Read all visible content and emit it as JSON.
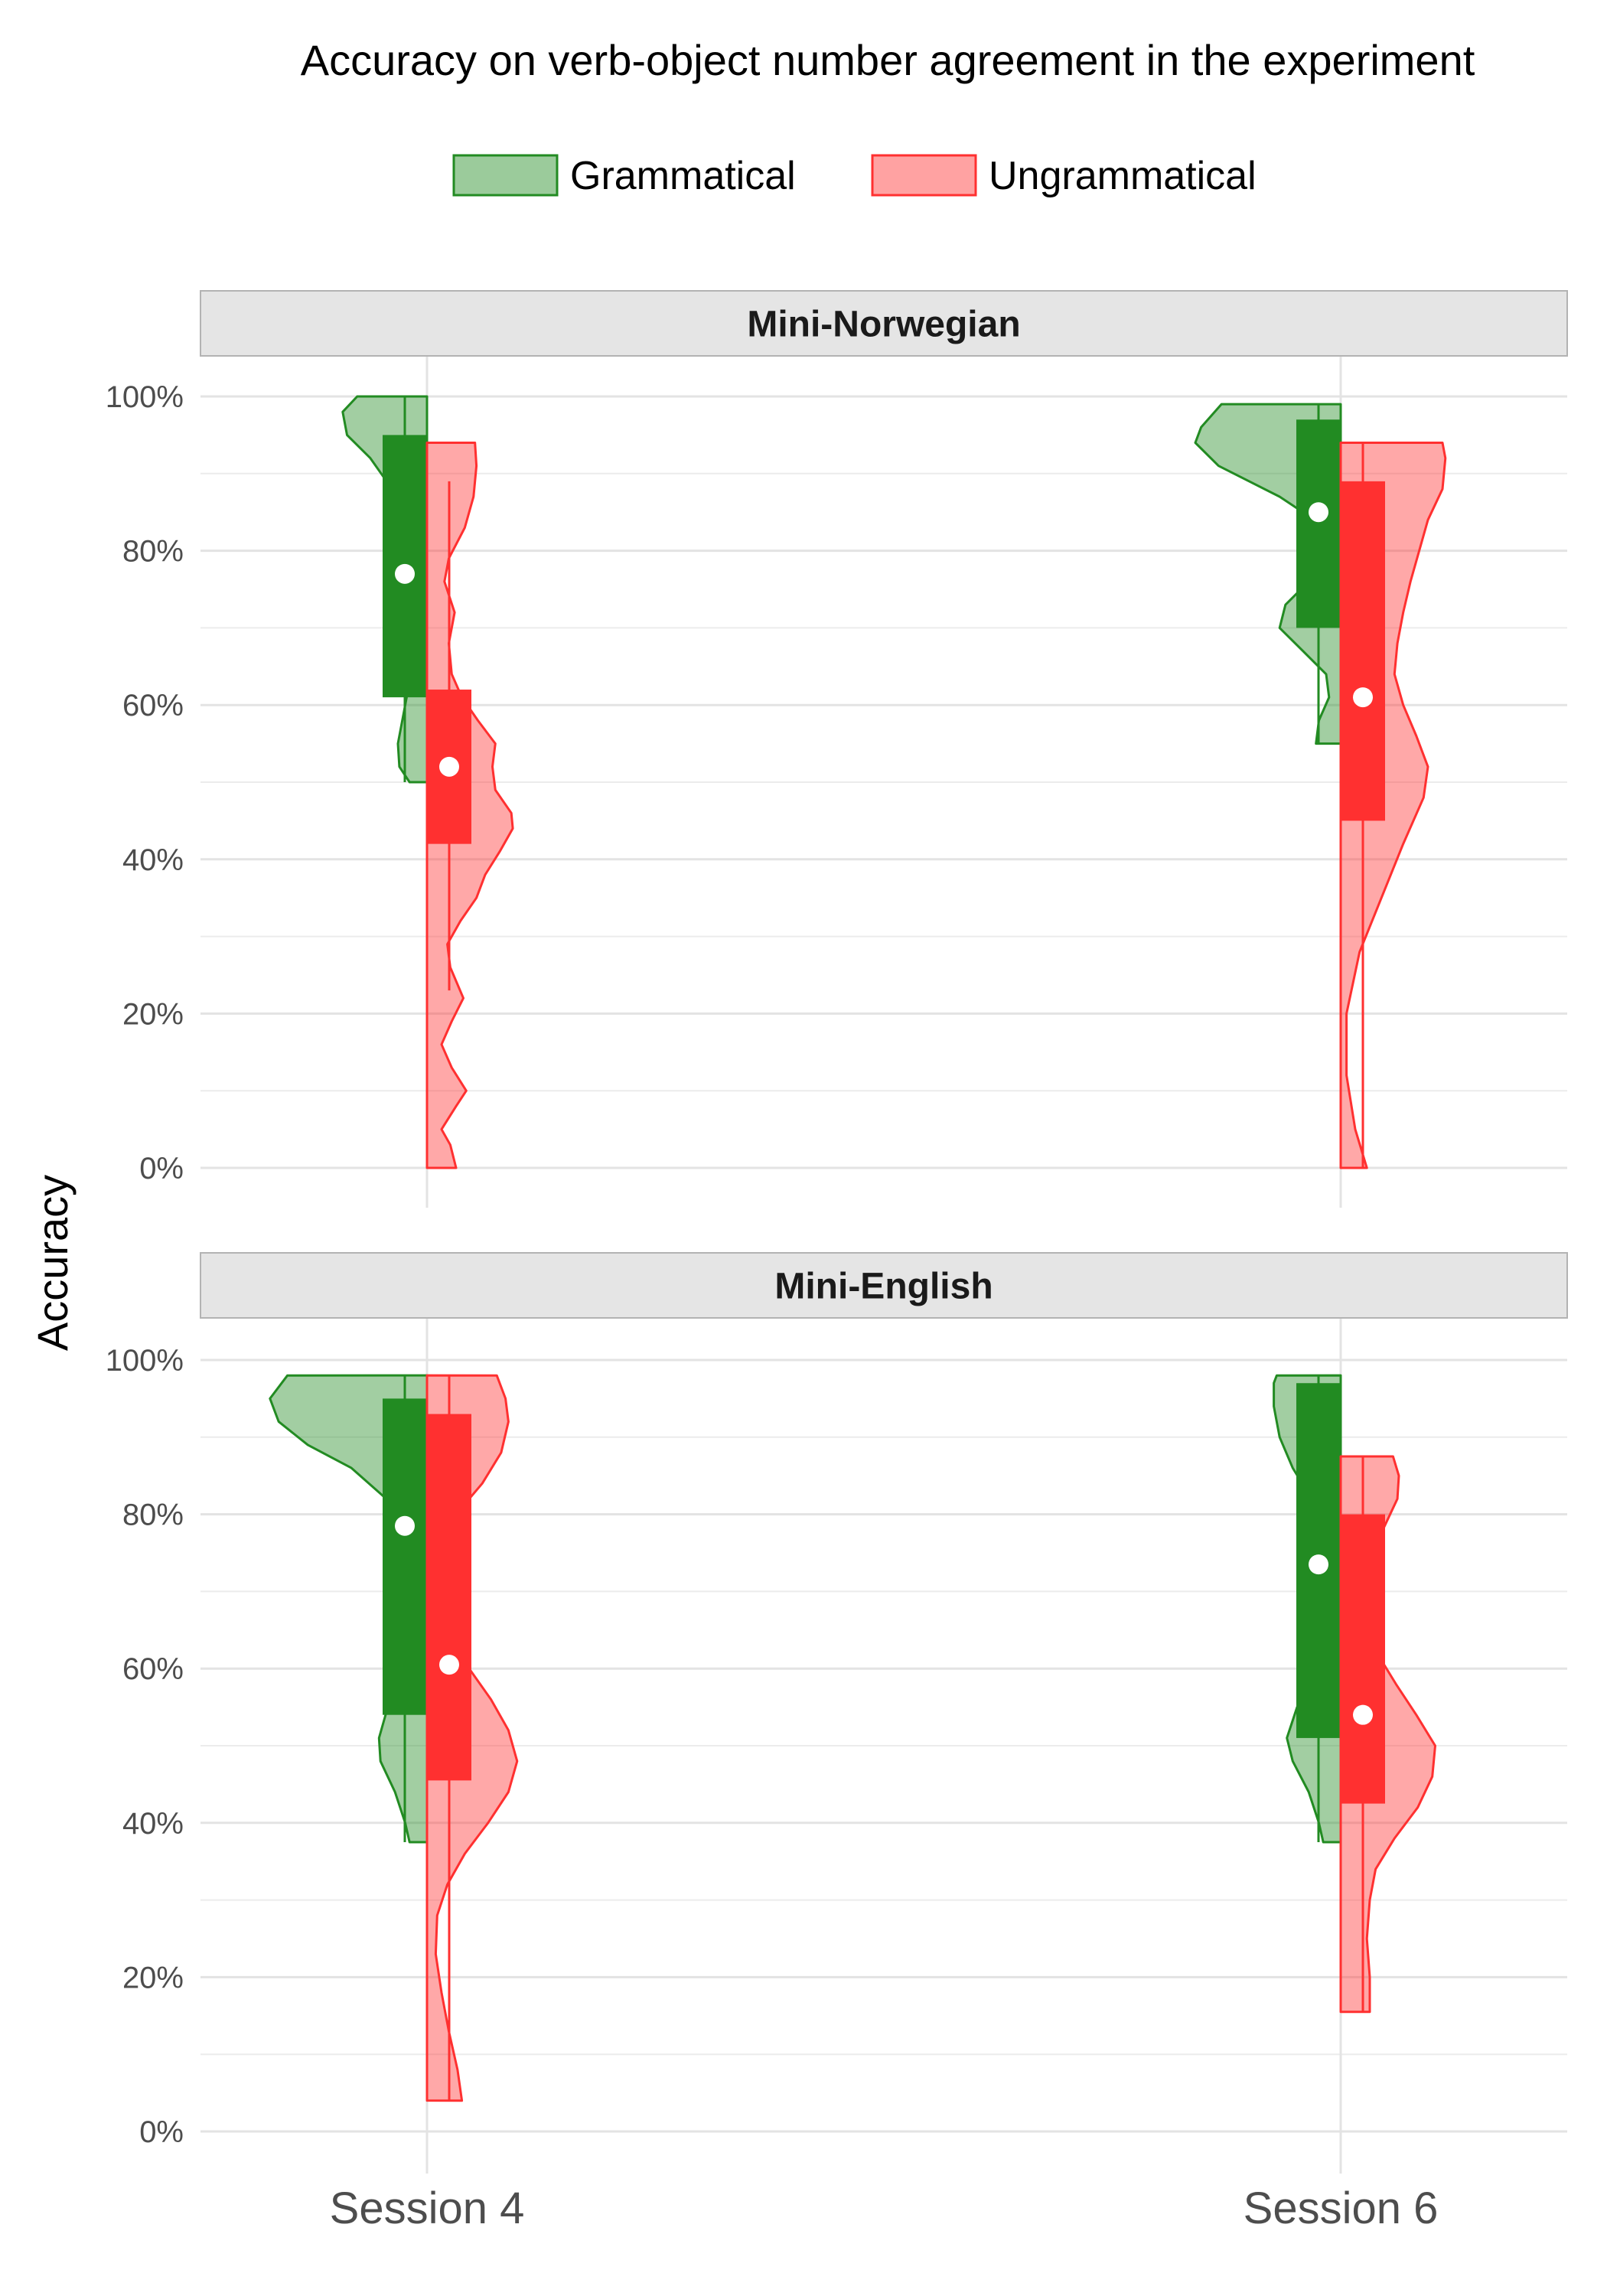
{
  "chart_data": {
    "type": "split-violin",
    "title": "Accuracy on verb-object number agreement in the experiment",
    "ylabel": "Accuracy",
    "xlabel": "",
    "ylim": [
      0,
      1
    ],
    "y_ticks": [
      "0%",
      "20%",
      "40%",
      "60%",
      "80%",
      "100%"
    ],
    "y_tick_values": [
      0,
      0.2,
      0.4,
      0.6,
      0.8,
      1.0
    ],
    "categories": [
      "Session 4",
      "Session 6"
    ],
    "legend": {
      "position": "top",
      "entries": [
        {
          "name": "Grammatical",
          "color": "#228B22"
        },
        {
          "name": "Ungrammatical",
          "color": "#FF3030"
        }
      ]
    },
    "grid": true,
    "panels": [
      {
        "name": "Mini-Norwegian",
        "groups": [
          {
            "session": "Session 4",
            "series": "Grammatical",
            "range": [
              0.5,
              1.0
            ],
            "box": {
              "q1": 0.61,
              "q3": 0.95,
              "mean": 0.77
            },
            "density": [
              [
                0.5,
                0.12
              ],
              [
                0.52,
                0.19
              ],
              [
                0.55,
                0.2
              ],
              [
                0.58,
                0.17
              ],
              [
                0.61,
                0.14
              ],
              [
                0.64,
                0.12
              ],
              [
                0.67,
                0.18
              ],
              [
                0.7,
                0.24
              ],
              [
                0.73,
                0.18
              ],
              [
                0.76,
                0.12
              ],
              [
                0.8,
                0.08
              ],
              [
                0.84,
                0.14
              ],
              [
                0.88,
                0.24
              ],
              [
                0.92,
                0.39
              ],
              [
                0.95,
                0.55
              ],
              [
                0.98,
                0.58
              ],
              [
                1.0,
                0.48
              ]
            ]
          },
          {
            "session": "Session 4",
            "series": "Ungrammatical",
            "range": [
              0.0,
              0.94
            ],
            "box": {
              "q1": 0.42,
              "q3": 0.62,
              "mean": 0.52
            },
            "whisker": [
              0.23,
              0.89
            ],
            "density": [
              [
                0.0,
                0.2
              ],
              [
                0.03,
                0.16
              ],
              [
                0.05,
                0.1
              ],
              [
                0.08,
                0.2
              ],
              [
                0.1,
                0.27
              ],
              [
                0.13,
                0.17
              ],
              [
                0.16,
                0.1
              ],
              [
                0.19,
                0.17
              ],
              [
                0.22,
                0.25
              ],
              [
                0.26,
                0.16
              ],
              [
                0.29,
                0.14
              ],
              [
                0.32,
                0.23
              ],
              [
                0.35,
                0.34
              ],
              [
                0.38,
                0.4
              ],
              [
                0.41,
                0.5
              ],
              [
                0.44,
                0.59
              ],
              [
                0.46,
                0.58
              ],
              [
                0.49,
                0.47
              ],
              [
                0.52,
                0.45
              ],
              [
                0.55,
                0.47
              ],
              [
                0.58,
                0.35
              ],
              [
                0.61,
                0.24
              ],
              [
                0.64,
                0.17
              ],
              [
                0.68,
                0.15
              ],
              [
                0.72,
                0.19
              ],
              [
                0.76,
                0.12
              ],
              [
                0.79,
                0.15
              ],
              [
                0.83,
                0.26
              ],
              [
                0.87,
                0.32
              ],
              [
                0.91,
                0.34
              ],
              [
                0.94,
                0.33
              ]
            ]
          },
          {
            "session": "Session 6",
            "series": "Grammatical",
            "range": [
              0.55,
              0.99
            ],
            "box": {
              "q1": 0.7,
              "q3": 0.97,
              "mean": 0.85
            },
            "density": [
              [
                0.55,
                0.17
              ],
              [
                0.58,
                0.15
              ],
              [
                0.61,
                0.08
              ],
              [
                0.64,
                0.1
              ],
              [
                0.67,
                0.26
              ],
              [
                0.7,
                0.42
              ],
              [
                0.73,
                0.38
              ],
              [
                0.76,
                0.22
              ],
              [
                0.79,
                0.08
              ],
              [
                0.83,
                0.1
              ],
              [
                0.87,
                0.42
              ],
              [
                0.91,
                0.84
              ],
              [
                0.94,
                1.0
              ],
              [
                0.96,
                0.96
              ],
              [
                0.99,
                0.82
              ]
            ]
          },
          {
            "session": "Session 6",
            "series": "Ungrammatical",
            "range": [
              0.0,
              0.94
            ],
            "box": {
              "q1": 0.45,
              "q3": 0.89,
              "mean": 0.61
            },
            "density": [
              [
                0.0,
                0.18
              ],
              [
                0.05,
                0.1
              ],
              [
                0.12,
                0.04
              ],
              [
                0.2,
                0.04
              ],
              [
                0.28,
                0.13
              ],
              [
                0.35,
                0.28
              ],
              [
                0.42,
                0.43
              ],
              [
                0.48,
                0.57
              ],
              [
                0.52,
                0.6
              ],
              [
                0.56,
                0.52
              ],
              [
                0.6,
                0.43
              ],
              [
                0.64,
                0.37
              ],
              [
                0.68,
                0.39
              ],
              [
                0.72,
                0.43
              ],
              [
                0.76,
                0.48
              ],
              [
                0.8,
                0.54
              ],
              [
                0.84,
                0.6
              ],
              [
                0.88,
                0.7
              ],
              [
                0.92,
                0.72
              ],
              [
                0.94,
                0.7
              ]
            ]
          }
        ]
      },
      {
        "name": "Mini-English",
        "groups": [
          {
            "session": "Session 4",
            "series": "Grammatical",
            "range": [
              0.375,
              0.98
            ],
            "box": {
              "q1": 0.54,
              "q3": 0.95,
              "mean": 0.785
            },
            "density": [
              [
                0.375,
                0.12
              ],
              [
                0.4,
                0.15
              ],
              [
                0.44,
                0.22
              ],
              [
                0.48,
                0.32
              ],
              [
                0.51,
                0.33
              ],
              [
                0.55,
                0.27
              ],
              [
                0.59,
                0.16
              ],
              [
                0.63,
                0.07
              ],
              [
                0.67,
                0.02
              ],
              [
                0.7,
                0.04
              ],
              [
                0.74,
                0.05
              ],
              [
                0.78,
                0.12
              ],
              [
                0.82,
                0.28
              ],
              [
                0.86,
                0.52
              ],
              [
                0.89,
                0.82
              ],
              [
                0.92,
                1.02
              ],
              [
                0.95,
                1.08
              ],
              [
                0.98,
                0.96
              ]
            ]
          },
          {
            "session": "Session 4",
            "series": "Ungrammatical",
            "range": [
              0.04,
              0.98
            ],
            "box": {
              "q1": 0.455,
              "q3": 0.93,
              "mean": 0.605
            },
            "density": [
              [
                0.04,
                0.24
              ],
              [
                0.08,
                0.21
              ],
              [
                0.13,
                0.15
              ],
              [
                0.18,
                0.1
              ],
              [
                0.23,
                0.06
              ],
              [
                0.28,
                0.07
              ],
              [
                0.32,
                0.14
              ],
              [
                0.36,
                0.26
              ],
              [
                0.4,
                0.42
              ],
              [
                0.44,
                0.56
              ],
              [
                0.48,
                0.62
              ],
              [
                0.52,
                0.56
              ],
              [
                0.56,
                0.44
              ],
              [
                0.6,
                0.29
              ],
              [
                0.64,
                0.17
              ],
              [
                0.68,
                0.09
              ],
              [
                0.72,
                0.06
              ],
              [
                0.76,
                0.09
              ],
              [
                0.8,
                0.2
              ],
              [
                0.84,
                0.38
              ],
              [
                0.88,
                0.51
              ],
              [
                0.92,
                0.56
              ],
              [
                0.95,
                0.54
              ],
              [
                0.98,
                0.48
              ]
            ]
          },
          {
            "session": "Session 6",
            "series": "Grammatical",
            "range": [
              0.375,
              0.98
            ],
            "box": {
              "q1": 0.51,
              "q3": 0.97,
              "mean": 0.735
            },
            "density": [
              [
                0.375,
                0.12
              ],
              [
                0.4,
                0.15
              ],
              [
                0.44,
                0.22
              ],
              [
                0.48,
                0.33
              ],
              [
                0.51,
                0.37
              ],
              [
                0.55,
                0.3
              ],
              [
                0.59,
                0.18
              ],
              [
                0.63,
                0.07
              ],
              [
                0.67,
                0.02
              ],
              [
                0.7,
                0.03
              ],
              [
                0.74,
                0.04
              ],
              [
                0.78,
                0.09
              ],
              [
                0.82,
                0.2
              ],
              [
                0.86,
                0.33
              ],
              [
                0.9,
                0.42
              ],
              [
                0.94,
                0.46
              ],
              [
                0.97,
                0.46
              ],
              [
                0.98,
                0.44
              ]
            ]
          },
          {
            "session": "Session 6",
            "series": "Ungrammatical",
            "range": [
              0.155,
              0.875
            ],
            "box": {
              "q1": 0.425,
              "q3": 0.8,
              "mean": 0.54
            },
            "density": [
              [
                0.155,
                0.2
              ],
              [
                0.2,
                0.2
              ],
              [
                0.25,
                0.18
              ],
              [
                0.3,
                0.2
              ],
              [
                0.34,
                0.24
              ],
              [
                0.38,
                0.37
              ],
              [
                0.42,
                0.53
              ],
              [
                0.46,
                0.63
              ],
              [
                0.5,
                0.65
              ],
              [
                0.54,
                0.52
              ],
              [
                0.58,
                0.38
              ],
              [
                0.62,
                0.25
              ],
              [
                0.66,
                0.17
              ],
              [
                0.7,
                0.14
              ],
              [
                0.74,
                0.19
              ],
              [
                0.78,
                0.29
              ],
              [
                0.82,
                0.39
              ],
              [
                0.85,
                0.4
              ],
              [
                0.875,
                0.36
              ]
            ]
          }
        ]
      }
    ]
  }
}
